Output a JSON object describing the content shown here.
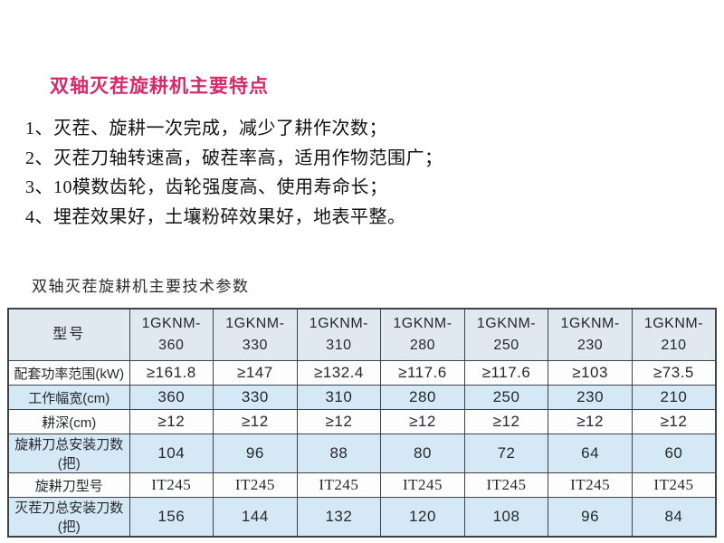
{
  "colors": {
    "accent_pink": "#d52a6a",
    "table_header_bg": "#dfe9ef",
    "table_stripe_bg": "#d5e8f6",
    "table_border": "#3c434a"
  },
  "features": {
    "title": "双轴灭茬旋耕机主要特点",
    "items": [
      "1、灭茬、旋耕一次完成，减少了耕作次数；",
      "2、灭茬刀轴转速高，破茬率高，适用作物范围广；",
      "3、10模数齿轮，齿轮强度高、使用寿命长；",
      "4、埋茬效果好，土壤粉碎效果好，地表平整。"
    ]
  },
  "specs": {
    "title": "双轴灭茬旋耕机主要技术参数",
    "table": {
      "corner_label": "型号",
      "models": [
        {
          "l1": "1GKNM-",
          "l2": "360"
        },
        {
          "l1": "1GKNM-",
          "l2": "330"
        },
        {
          "l1": "1GKNM-",
          "l2": "310"
        },
        {
          "l1": "1GKNM-",
          "l2": "280"
        },
        {
          "l1": "1GKNM-",
          "l2": "250"
        },
        {
          "l1": "1GKNM-",
          "l2": "230"
        },
        {
          "l1": "1GKNM-",
          "l2": "210"
        }
      ],
      "rows": [
        {
          "label": "配套功率范围(kW)",
          "values": [
            "≥161.8",
            "≥147",
            "≥132.4",
            "≥117.6",
            "≥117.6",
            "≥103",
            "≥73.5"
          ]
        },
        {
          "label": "工作幅宽(cm)",
          "values": [
            "360",
            "330",
            "310",
            "280",
            "250",
            "230",
            "210"
          ]
        },
        {
          "label": "耕深(cm)",
          "values": [
            "≥12",
            "≥12",
            "≥12",
            "≥12",
            "≥12",
            "≥12",
            "≥12"
          ]
        },
        {
          "label": "旋耕刀总安装刀数(把)",
          "values": [
            "104",
            "96",
            "88",
            "80",
            "72",
            "64",
            "60"
          ]
        },
        {
          "label": "旋耕刀型号",
          "values": [
            "IT245",
            "IT245",
            "IT245",
            "IT245",
            "IT245",
            "IT245",
            "IT245"
          ]
        },
        {
          "label": "灭茬刀总安装刀数(把)",
          "values": [
            "156",
            "144",
            "132",
            "120",
            "108",
            "96",
            "84"
          ]
        }
      ]
    }
  }
}
